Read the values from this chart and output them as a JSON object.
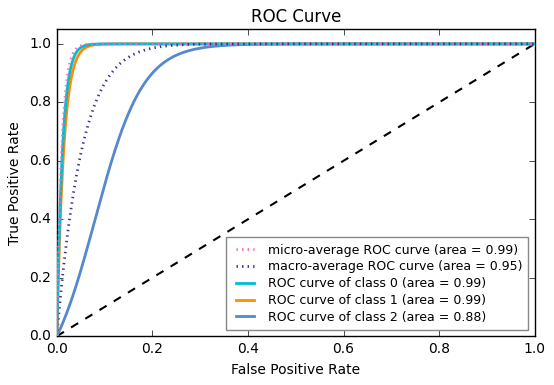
{
  "title": "ROC Curve",
  "xlabel": "False Positive Rate",
  "ylabel": "True Positive Rate",
  "xlim": [
    0.0,
    1.0
  ],
  "ylim": [
    0.0,
    1.05
  ],
  "legend_entries": [
    "micro-average ROC curve (area = 0.99)",
    "macro-average ROC curve (area = 0.95)",
    "ROC curve of class 0 (area = 0.99)",
    "ROC curve of class 1 (area = 0.99)",
    "ROC curve of class 2 (area = 0.88)"
  ],
  "line_colors": [
    "#ff69b4",
    "#333399",
    "#00bcd4",
    "#ff8c00",
    "#5588cc"
  ],
  "line_styles": [
    "dotted",
    "dotted",
    "solid",
    "solid",
    "solid"
  ],
  "line_widths": [
    2.0,
    2.0,
    2.0,
    2.0,
    2.0
  ],
  "background_color": "#ffffff",
  "title_fontsize": 12,
  "label_fontsize": 10,
  "tick_fontsize": 10,
  "legend_fontsize": 9
}
